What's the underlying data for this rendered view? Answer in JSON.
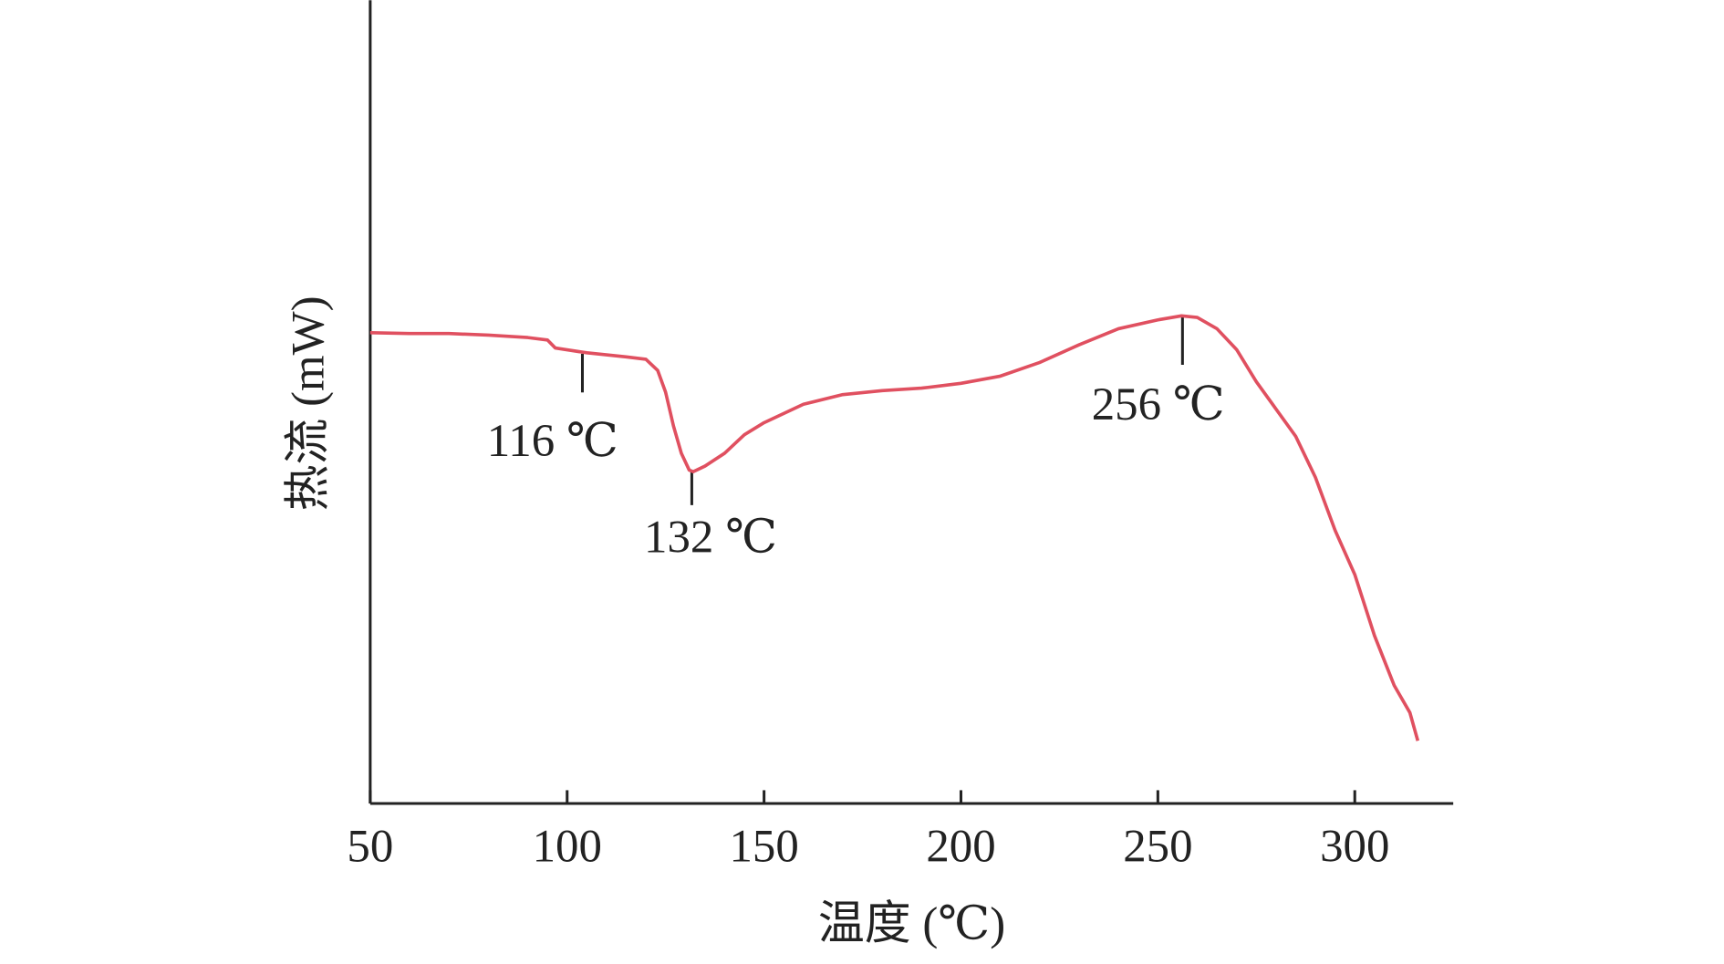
{
  "chart_data": {
    "type": "line",
    "xlabel": "温度 (℃)",
    "ylabel": "热流 (mW)",
    "xlim": [
      50,
      325
    ],
    "xticks": [
      50,
      100,
      150,
      200,
      250,
      300
    ],
    "ylim": [
      0,
      100
    ],
    "series": [
      {
        "color": "#e05060",
        "x": [
          50,
          60,
          70,
          80,
          90,
          95,
          97,
          105,
          115,
          120,
          123,
          125,
          127,
          129,
          131,
          132,
          135,
          140,
          145,
          150,
          160,
          170,
          180,
          190,
          200,
          210,
          220,
          230,
          240,
          250,
          256,
          260,
          265,
          270,
          275,
          280,
          285,
          290,
          295,
          300,
          305,
          310,
          314,
          316
        ],
        "values": [
          58.6,
          58.5,
          58.5,
          58.3,
          58.0,
          57.7,
          56.7,
          56.1,
          55.6,
          55.3,
          53.9,
          51.2,
          47.0,
          43.6,
          41.5,
          41.3,
          42.0,
          43.6,
          45.9,
          47.4,
          49.7,
          50.9,
          51.4,
          51.7,
          52.3,
          53.2,
          54.9,
          57.1,
          59.1,
          60.2,
          60.7,
          60.5,
          59.1,
          56.5,
          52.5,
          49.1,
          45.7,
          40.6,
          34.0,
          28.5,
          20.9,
          14.7,
          11.3,
          7.8
        ]
      }
    ],
    "annotations": [
      "116 ℃",
      "132 ℃",
      "256 ℃"
    ]
  }
}
